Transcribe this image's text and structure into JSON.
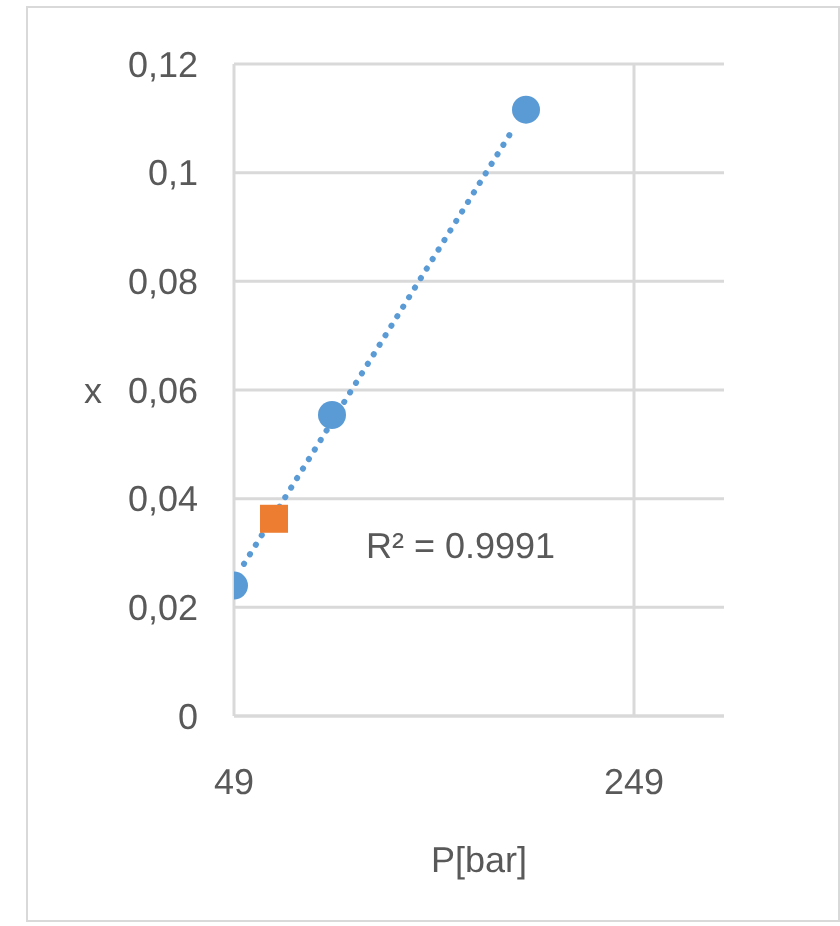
{
  "chart_data": {
    "type": "scatter",
    "xlabel": "P[bar]",
    "ylabel": "x",
    "xlim": [
      49,
      294
    ],
    "xticks": [
      49,
      249
    ],
    "ylim": [
      0,
      0.12
    ],
    "yticks": [
      {
        "value": 0,
        "label": "0"
      },
      {
        "value": 0.02,
        "label": "0,02"
      },
      {
        "value": 0.04,
        "label": "0,04"
      },
      {
        "value": 0.06,
        "label": "0,06"
      },
      {
        "value": 0.08,
        "label": "0,08"
      },
      {
        "value": 0.1,
        "label": "0,1"
      },
      {
        "value": 0.12,
        "label": "0,12"
      }
    ],
    "grid": true,
    "legend": false,
    "series": [
      {
        "type": "line",
        "color": "#5b9bd5",
        "line_style": "dotted",
        "marker": "none",
        "x": [
          54,
          188
        ],
        "values": [
          0.028,
          0.1077
        ]
      },
      {
        "color": "#5b9bd5",
        "marker": "circle",
        "x": [
          49,
          98,
          195
        ],
        "values": [
          0.024,
          0.0554,
          0.1116
        ]
      },
      {
        "color": "#ed7d31",
        "marker": "square",
        "x": [
          69
        ],
        "values": [
          0.0363
        ]
      }
    ],
    "annotations": [
      "R² = 0.9991"
    ]
  }
}
